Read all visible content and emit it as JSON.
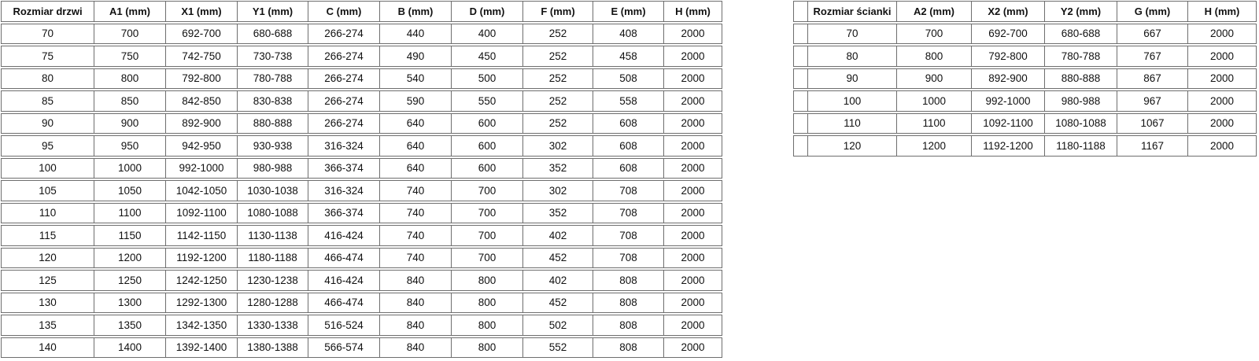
{
  "colors": {
    "background": "#ffffff",
    "border": "#6e6e6e",
    "text": "#111111"
  },
  "door_table": {
    "headers": [
      "Rozmiar drzwi",
      "A1 (mm)",
      "X1 (mm)",
      "Y1 (mm)",
      "C (mm)",
      "B (mm)",
      "D (mm)",
      "F (mm)",
      "E (mm)",
      "H (mm)"
    ],
    "rows": [
      [
        "70",
        "700",
        "692-700",
        "680-688",
        "266-274",
        "440",
        "400",
        "252",
        "408",
        "2000"
      ],
      [
        "75",
        "750",
        "742-750",
        "730-738",
        "266-274",
        "490",
        "450",
        "252",
        "458",
        "2000"
      ],
      [
        "80",
        "800",
        "792-800",
        "780-788",
        "266-274",
        "540",
        "500",
        "252",
        "508",
        "2000"
      ],
      [
        "85",
        "850",
        "842-850",
        "830-838",
        "266-274",
        "590",
        "550",
        "252",
        "558",
        "2000"
      ],
      [
        "90",
        "900",
        "892-900",
        "880-888",
        "266-274",
        "640",
        "600",
        "252",
        "608",
        "2000"
      ],
      [
        "95",
        "950",
        "942-950",
        "930-938",
        "316-324",
        "640",
        "600",
        "302",
        "608",
        "2000"
      ],
      [
        "100",
        "1000",
        "992-1000",
        "980-988",
        "366-374",
        "640",
        "600",
        "352",
        "608",
        "2000"
      ],
      [
        "105",
        "1050",
        "1042-1050",
        "1030-1038",
        "316-324",
        "740",
        "700",
        "302",
        "708",
        "2000"
      ],
      [
        "110",
        "1100",
        "1092-1100",
        "1080-1088",
        "366-374",
        "740",
        "700",
        "352",
        "708",
        "2000"
      ],
      [
        "115",
        "1150",
        "1142-1150",
        "1130-1138",
        "416-424",
        "740",
        "700",
        "402",
        "708",
        "2000"
      ],
      [
        "120",
        "1200",
        "1192-1200",
        "1180-1188",
        "466-474",
        "740",
        "700",
        "452",
        "708",
        "2000"
      ],
      [
        "125",
        "1250",
        "1242-1250",
        "1230-1238",
        "416-424",
        "840",
        "800",
        "402",
        "808",
        "2000"
      ],
      [
        "130",
        "1300",
        "1292-1300",
        "1280-1288",
        "466-474",
        "840",
        "800",
        "452",
        "808",
        "2000"
      ],
      [
        "135",
        "1350",
        "1342-1350",
        "1330-1338",
        "516-524",
        "840",
        "800",
        "502",
        "808",
        "2000"
      ],
      [
        "140",
        "1400",
        "1392-1400",
        "1380-1388",
        "566-574",
        "840",
        "800",
        "552",
        "808",
        "2000"
      ]
    ]
  },
  "wall_table": {
    "headers": [
      "Rozmiar ścianki",
      "A2 (mm)",
      "X2 (mm)",
      "Y2 (mm)",
      "G (mm)",
      "H (mm)"
    ],
    "rows": [
      [
        "70",
        "700",
        "692-700",
        "680-688",
        "667",
        "2000"
      ],
      [
        "80",
        "800",
        "792-800",
        "780-788",
        "767",
        "2000"
      ],
      [
        "90",
        "900",
        "892-900",
        "880-888",
        "867",
        "2000"
      ],
      [
        "100",
        "1000",
        "992-1000",
        "980-988",
        "967",
        "2000"
      ],
      [
        "110",
        "1100",
        "1092-1100",
        "1080-1088",
        "1067",
        "2000"
      ],
      [
        "120",
        "1200",
        "1192-1200",
        "1180-1188",
        "1167",
        "2000"
      ]
    ]
  }
}
